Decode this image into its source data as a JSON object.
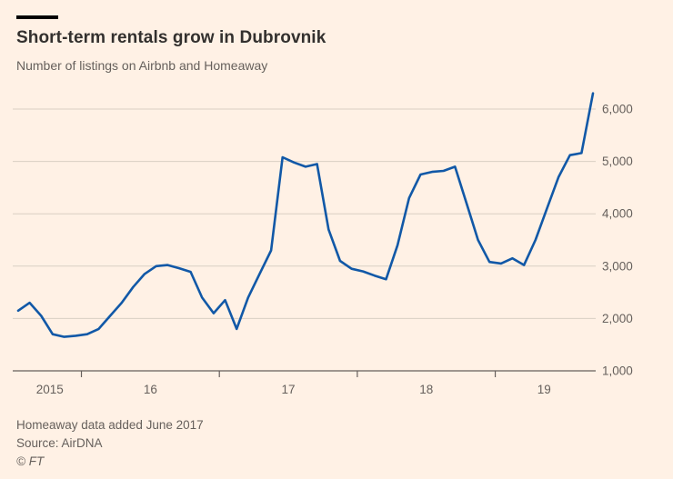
{
  "page": {
    "background_color": "#fff1e5",
    "title_color": "#33302e",
    "muted_text_color": "#66605c"
  },
  "header": {
    "title": "Short-term rentals grow in Dubrovnik",
    "subtitle": "Number of listings on Airbnb and Homeaway"
  },
  "footer": {
    "note": "Homeaway data added June 2017",
    "source": "Source: AirDNA",
    "copyright": "© FT"
  },
  "chart_data": {
    "type": "line",
    "title": "Short-term rentals grow in Dubrovnik",
    "subtitle": "Number of listings on Airbnb and Homeaway",
    "x_start": "2015-07",
    "x_frequency": "monthly",
    "series": [
      {
        "name": "Number of listings on Airbnb and Homeaway",
        "color": "#1158a7",
        "values": [
          2150,
          2300,
          2050,
          1700,
          1650,
          1670,
          1700,
          1800,
          2050,
          2300,
          2600,
          2850,
          3000,
          3020,
          2960,
          2890,
          2400,
          2100,
          2350,
          1800,
          2400,
          2850,
          3300,
          5080,
          4980,
          4900,
          4950,
          3700,
          3100,
          2950,
          2900,
          2820,
          2750,
          3400,
          4300,
          4750,
          4800,
          4820,
          4900,
          4200,
          3500,
          3080,
          3050,
          3150,
          3020,
          3500,
          4100,
          4700,
          5120,
          5160,
          6300
        ]
      }
    ],
    "y_ticks": [
      {
        "value": 1000,
        "label": "1,000"
      },
      {
        "value": 2000,
        "label": "2,000"
      },
      {
        "value": 3000,
        "label": "3,000"
      },
      {
        "value": 4000,
        "label": "4,000"
      },
      {
        "value": 5000,
        "label": "5,000"
      },
      {
        "value": 6000,
        "label": "6,000"
      }
    ],
    "ylim": [
      1000,
      6500
    ],
    "x_tick_boundaries": [
      5.5,
      17.5,
      29.5,
      41.5
    ],
    "x_labels": [
      {
        "label": "2015",
        "center_index": 2.75
      },
      {
        "label": "16",
        "center_index": 11.5
      },
      {
        "label": "17",
        "center_index": 23.5
      },
      {
        "label": "18",
        "center_index": 35.5
      },
      {
        "label": "19",
        "center_index": 45.75
      }
    ],
    "grid": "horizontal",
    "legend_position": "none",
    "grid_color": "#d9cfc4",
    "axis_color": "#66605c",
    "label_color": "#66605c"
  }
}
